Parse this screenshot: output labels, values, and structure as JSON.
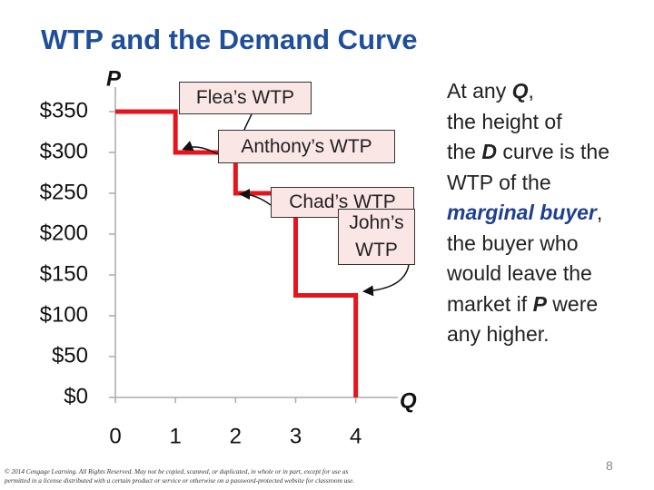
{
  "chart_data": {
    "type": "line",
    "title": "WTP and the Demand Curve",
    "x_label": "Q",
    "y_label": "P",
    "series": [
      {
        "color": "#e8141b",
        "x": [
          0,
          1,
          1,
          2,
          2,
          3,
          3,
          4,
          4
        ],
        "values": [
          350,
          350,
          300,
          300,
          250,
          250,
          125,
          125,
          0
        ]
      }
    ],
    "xlim": [
      0,
      4.7
    ],
    "xticks": [
      0,
      1,
      2,
      3,
      4
    ],
    "ylim": [
      0,
      380
    ],
    "yticks": [
      {
        "value": 0,
        "label": "$0"
      },
      {
        "value": 50,
        "label": "$50"
      },
      {
        "value": 100,
        "label": "$100"
      },
      {
        "value": 150,
        "label": "$150"
      },
      {
        "value": 200,
        "label": "$200"
      },
      {
        "value": 250,
        "label": "$250"
      },
      {
        "value": 300,
        "label": "$300"
      },
      {
        "value": 350,
        "label": "$350"
      }
    ],
    "annotations": [
      "Flea’s WTP",
      "Anthony’s WTP",
      "Chad’s WTP",
      "John’s WTP"
    ]
  },
  "side_text": [
    [
      "At any ",
      "Q",
      ","
    ],
    [
      "the height of"
    ],
    [
      "the ",
      "D",
      " curve is the"
    ],
    [
      "WTP of the"
    ],
    [
      "marginal buyer",
      ","
    ],
    [
      "the buyer who"
    ],
    [
      "would leave the"
    ],
    [
      "market if ",
      "P",
      " were"
    ],
    [
      "any higher."
    ]
  ],
  "footer": {
    "copyright": [
      "© 2014 Cengage Learning. All Rights Reserved. May not be copied, scanned, or duplicated, in whole or in part, except for use as",
      "permitted in a license distributed with a certain product or service or otherwise on a password-protected website for classroom use."
    ],
    "page_number": "8"
  }
}
